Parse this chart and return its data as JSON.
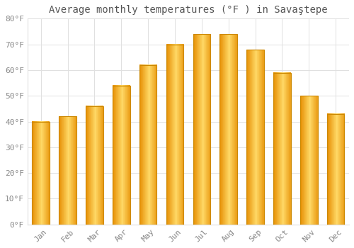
{
  "title": "Average monthly temperatures (°F ) in Savaştepe",
  "months": [
    "Jan",
    "Feb",
    "Mar",
    "Apr",
    "May",
    "Jun",
    "Jul",
    "Aug",
    "Sep",
    "Oct",
    "Nov",
    "Dec"
  ],
  "values": [
    40,
    42,
    46,
    54,
    62,
    70,
    74,
    74,
    68,
    59,
    50,
    43
  ],
  "bar_color_light": "#FFD966",
  "bar_color_mid": "#FFA500",
  "bar_color_dark": "#E8930A",
  "bar_edge_color": "#CC8800",
  "background_color": "#FFFFFF",
  "grid_color": "#E0E0E0",
  "ylim": [
    0,
    80
  ],
  "yticks": [
    0,
    10,
    20,
    30,
    40,
    50,
    60,
    70,
    80
  ],
  "title_fontsize": 10,
  "tick_fontsize": 8,
  "tick_font_color": "#888888",
  "title_color": "#555555"
}
